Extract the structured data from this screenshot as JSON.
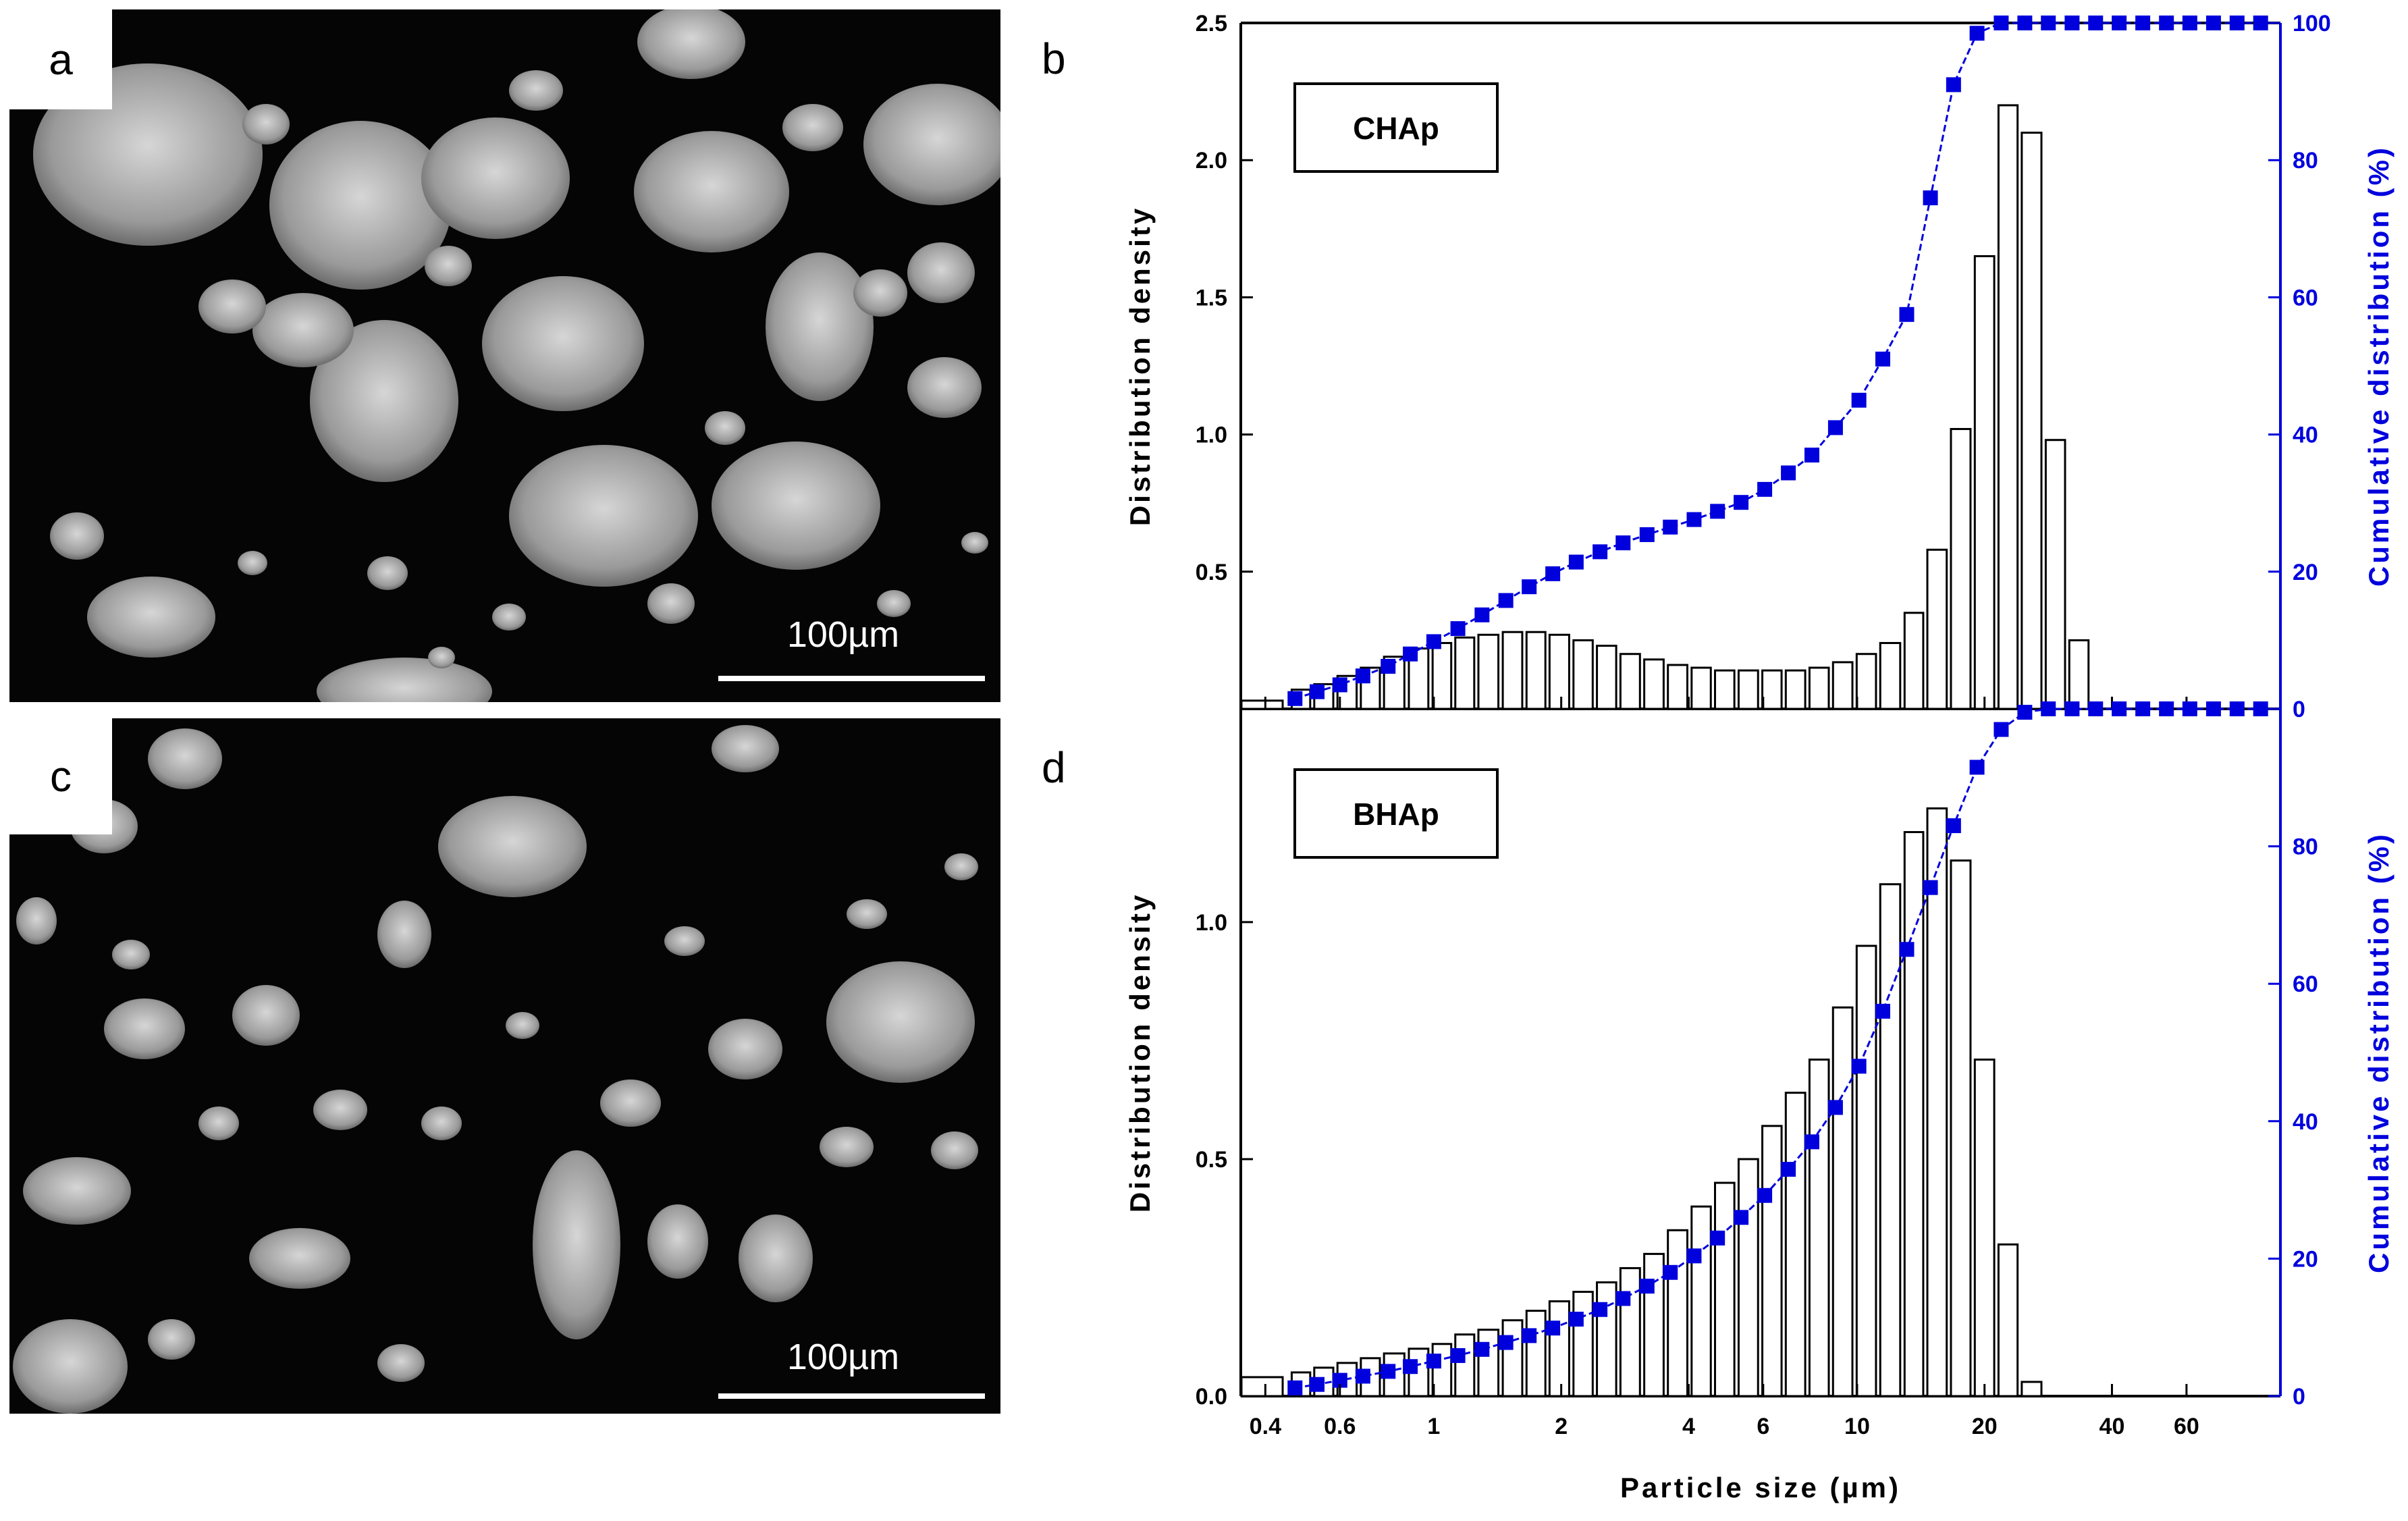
{
  "images": [
    {
      "panel": "a",
      "scale_label": "100µm"
    },
    {
      "panel": "c",
      "scale_label": "100µm"
    }
  ],
  "colors": {
    "bars": "#000000",
    "cumulative": "#0000dd",
    "sem_particle": "#c8c8c8"
  },
  "chart_data": [
    {
      "panel": "b",
      "type": "bar",
      "legend_label": "CHAp",
      "xlabel": "",
      "ylabel": "Distribution density",
      "ylabel_right": "Cumulative distribution (%)",
      "x_scale": "log",
      "xlim": [
        0.35,
        100
      ],
      "ylim": [
        0,
        2.5
      ],
      "ylim_right": [
        0,
        100
      ],
      "yticks": [
        0.5,
        1.0,
        1.5,
        2.0,
        2.5
      ],
      "ytick_labels": [
        "0.5",
        "1.0",
        "1.5",
        "2.0",
        "2.5"
      ],
      "yticks_right": [
        0,
        20,
        40,
        60,
        80,
        100
      ],
      "ytick_labels_right": [
        "0",
        "20",
        "40",
        "60",
        "80",
        "100"
      ],
      "xticks": [
        0.4,
        0.6,
        1,
        2,
        4,
        6,
        10,
        20,
        40,
        60
      ],
      "xtick_labels": [
        "",
        "",
        "",
        "",
        "",
        "",
        "",
        "",
        "",
        ""
      ],
      "bars": {
        "x": [
          0.35,
          0.46,
          0.52,
          0.59,
          0.67,
          0.76,
          0.87,
          0.99,
          1.12,
          1.27,
          1.45,
          1.65,
          1.87,
          2.13,
          2.42,
          2.75,
          3.13,
          3.56,
          4.05,
          4.6,
          5.23,
          5.95,
          6.76,
          7.69,
          8.74,
          9.94,
          11.3,
          12.9,
          14.6,
          16.6,
          18.9,
          21.5,
          24.4,
          27.8,
          31.6,
          35.9,
          40.8,
          46.4,
          52.8
        ],
        "values": [
          0.03,
          0.07,
          0.09,
          0.12,
          0.15,
          0.19,
          0.22,
          0.24,
          0.26,
          0.27,
          0.28,
          0.28,
          0.27,
          0.25,
          0.23,
          0.2,
          0.18,
          0.16,
          0.15,
          0.14,
          0.14,
          0.14,
          0.14,
          0.15,
          0.17,
          0.2,
          0.24,
          0.35,
          0.58,
          1.02,
          1.65,
          2.2,
          2.1,
          0.98,
          0.25,
          0,
          0,
          0,
          0
        ]
      },
      "cumulative": {
        "x": [
          0.47,
          0.53,
          0.6,
          0.68,
          0.78,
          0.88,
          1.0,
          1.14,
          1.3,
          1.48,
          1.68,
          1.91,
          2.17,
          2.47,
          2.8,
          3.19,
          3.62,
          4.12,
          4.68,
          5.32,
          6.05,
          6.88,
          7.82,
          8.89,
          10.1,
          11.5,
          13.1,
          14.9,
          16.9,
          19.2,
          21.9,
          24.9,
          28.3,
          32.2,
          36.6,
          41.6,
          47.3,
          53.8,
          61.1,
          69.5,
          79.0,
          89.8
        ],
        "values": [
          1.5,
          2.5,
          3.5,
          4.8,
          6.2,
          8,
          9.8,
          11.7,
          13.7,
          15.8,
          17.8,
          19.7,
          21.4,
          22.9,
          24.2,
          25.4,
          26.5,
          27.6,
          28.8,
          30.1,
          32.0,
          34.4,
          37.0,
          41.0,
          45.0,
          51.0,
          57.5,
          74.5,
          91.0,
          98.5,
          100,
          100,
          100,
          100,
          100,
          100,
          100,
          100,
          100,
          100,
          100,
          100
        ]
      }
    },
    {
      "panel": "d",
      "type": "bar",
      "legend_label": "BHAp",
      "xlabel": "Particle size (µm)",
      "ylabel": "Distribution density",
      "ylabel_right": "Cumulative distribution (%)",
      "x_scale": "log",
      "xlim": [
        0.35,
        100
      ],
      "ylim": [
        0,
        1.45
      ],
      "ylim_right": [
        0,
        100
      ],
      "yticks": [
        0.0,
        0.5,
        1.0
      ],
      "ytick_labels": [
        "0.0",
        "0.5",
        "1.0"
      ],
      "yticks_right": [
        0,
        20,
        40,
        60,
        80
      ],
      "ytick_labels_right": [
        "0",
        "20",
        "40",
        "60",
        "80"
      ],
      "xticks": [
        0.4,
        0.6,
        1,
        2,
        4,
        6,
        10,
        20,
        40,
        60
      ],
      "xtick_labels": [
        "0.4",
        "0.6",
        "1",
        "2",
        "4",
        "6",
        "10",
        "20",
        "40",
        "60"
      ],
      "bars": {
        "x": [
          0.35,
          0.46,
          0.52,
          0.59,
          0.67,
          0.76,
          0.87,
          0.99,
          1.12,
          1.27,
          1.45,
          1.65,
          1.87,
          2.13,
          2.42,
          2.75,
          3.13,
          3.56,
          4.05,
          4.6,
          5.23,
          5.95,
          6.76,
          7.69,
          8.74,
          9.94,
          11.3,
          12.9,
          14.6,
          16.6,
          18.9,
          21.5,
          24.4,
          27.8,
          31.6,
          35.9,
          40.8,
          46.4,
          52.8
        ],
        "values": [
          0.04,
          0.05,
          0.06,
          0.07,
          0.08,
          0.09,
          0.1,
          0.11,
          0.13,
          0.14,
          0.16,
          0.18,
          0.2,
          0.22,
          0.24,
          0.27,
          0.3,
          0.35,
          0.4,
          0.45,
          0.5,
          0.57,
          0.64,
          0.71,
          0.82,
          0.95,
          1.08,
          1.19,
          1.24,
          1.13,
          0.71,
          0.32,
          0.03,
          0,
          0,
          0,
          0,
          0,
          0
        ]
      },
      "cumulative": {
        "x": [
          0.47,
          0.53,
          0.6,
          0.68,
          0.78,
          0.88,
          1.0,
          1.14,
          1.3,
          1.48,
          1.68,
          1.91,
          2.17,
          2.47,
          2.8,
          3.19,
          3.62,
          4.12,
          4.68,
          5.32,
          6.05,
          6.88,
          7.82,
          8.89,
          10.1,
          11.5,
          13.1,
          14.9,
          16.9,
          19.2,
          21.9,
          24.9,
          28.3,
          32.2,
          36.6,
          41.6,
          47.3,
          53.8,
          61.1,
          69.5,
          79.0,
          89.8
        ],
        "values": [
          1.2,
          1.7,
          2.3,
          2.9,
          3.6,
          4.3,
          5.1,
          5.9,
          6.8,
          7.8,
          8.8,
          9.9,
          11.2,
          12.6,
          14.2,
          16.0,
          18.0,
          20.4,
          23.0,
          26.0,
          29.2,
          33.0,
          37.0,
          42.0,
          48.0,
          56.0,
          65.0,
          74.0,
          83.0,
          91.5,
          97.0,
          99.5,
          100,
          100,
          100,
          100,
          100,
          100,
          100,
          100,
          100,
          100
        ]
      }
    }
  ]
}
